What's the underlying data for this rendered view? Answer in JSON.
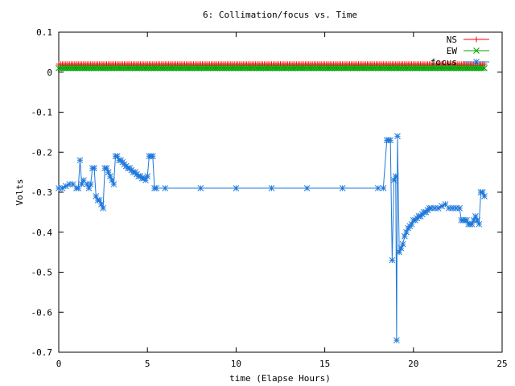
{
  "chart_data": {
    "type": "line",
    "title": "6: Collimation/focus vs. Time",
    "xlabel": "time (Elapse Hours)",
    "ylabel": "Volts",
    "xlim": [
      0,
      25
    ],
    "ylim": [
      -0.7,
      0.1
    ],
    "x_ticks": [
      0,
      5,
      10,
      15,
      20,
      25
    ],
    "x_tick_labels": [
      "0",
      "5",
      "10",
      "15",
      "20",
      "25"
    ],
    "y_ticks": [
      0.1,
      0,
      -0.1,
      -0.2,
      -0.3,
      -0.4,
      -0.5,
      -0.6,
      -0.7
    ],
    "y_tick_labels": [
      "0.1",
      "0",
      "-0.1",
      "-0.2",
      "-0.3",
      "-0.4",
      "-0.5",
      "-0.6",
      "-0.7"
    ],
    "grid": false,
    "legend_position": "top-right",
    "series": [
      {
        "name": "NS",
        "color": "#ff0000",
        "marker": "plus",
        "x_start": 0,
        "x_end": 24,
        "x_step": 0.1,
        "constant_value": 0.02
      },
      {
        "name": "EW",
        "color": "#00a000",
        "marker": "cross",
        "x_start": 0,
        "x_end": 24,
        "x_step": 0.1,
        "constant_value": 0.01
      },
      {
        "name": "focus",
        "color": "#1e78dc",
        "marker": "star",
        "points": [
          [
            0,
            -0.29
          ],
          [
            0.2,
            -0.29
          ],
          [
            0.4,
            -0.285
          ],
          [
            0.6,
            -0.28
          ],
          [
            0.8,
            -0.28
          ],
          [
            1.0,
            -0.29
          ],
          [
            1.1,
            -0.29
          ],
          [
            1.2,
            -0.22
          ],
          [
            1.3,
            -0.28
          ],
          [
            1.4,
            -0.27
          ],
          [
            1.6,
            -0.28
          ],
          [
            1.7,
            -0.29
          ],
          [
            1.8,
            -0.28
          ],
          [
            1.9,
            -0.24
          ],
          [
            2.0,
            -0.24
          ],
          [
            2.1,
            -0.31
          ],
          [
            2.2,
            -0.32
          ],
          [
            2.3,
            -0.32
          ],
          [
            2.4,
            -0.33
          ],
          [
            2.5,
            -0.34
          ],
          [
            2.6,
            -0.24
          ],
          [
            2.7,
            -0.24
          ],
          [
            2.8,
            -0.25
          ],
          [
            2.9,
            -0.26
          ],
          [
            3.0,
            -0.27
          ],
          [
            3.1,
            -0.28
          ],
          [
            3.2,
            -0.21
          ],
          [
            3.3,
            -0.21
          ],
          [
            3.4,
            -0.22
          ],
          [
            3.5,
            -0.22
          ],
          [
            3.6,
            -0.225
          ],
          [
            3.7,
            -0.23
          ],
          [
            3.8,
            -0.235
          ],
          [
            3.9,
            -0.24
          ],
          [
            4.0,
            -0.24
          ],
          [
            4.1,
            -0.245
          ],
          [
            4.2,
            -0.25
          ],
          [
            4.3,
            -0.25
          ],
          [
            4.4,
            -0.255
          ],
          [
            4.5,
            -0.26
          ],
          [
            4.6,
            -0.26
          ],
          [
            4.7,
            -0.265
          ],
          [
            4.8,
            -0.265
          ],
          [
            4.9,
            -0.27
          ],
          [
            5.0,
            -0.26
          ],
          [
            5.1,
            -0.21
          ],
          [
            5.2,
            -0.21
          ],
          [
            5.3,
            -0.21
          ],
          [
            5.4,
            -0.29
          ],
          [
            5.5,
            -0.29
          ],
          [
            6.0,
            -0.29
          ],
          [
            8.0,
            -0.29
          ],
          [
            10.0,
            -0.29
          ],
          [
            12.0,
            -0.29
          ],
          [
            14.0,
            -0.29
          ],
          [
            16.0,
            -0.29
          ],
          [
            18.0,
            -0.29
          ],
          [
            18.3,
            -0.29
          ],
          [
            18.5,
            -0.17
          ],
          [
            18.6,
            -0.17
          ],
          [
            18.7,
            -0.17
          ],
          [
            18.8,
            -0.47
          ],
          [
            18.9,
            -0.27
          ],
          [
            19.0,
            -0.26
          ],
          [
            19.05,
            -0.67
          ],
          [
            19.1,
            -0.16
          ],
          [
            19.2,
            -0.45
          ],
          [
            19.3,
            -0.44
          ],
          [
            19.4,
            -0.43
          ],
          [
            19.5,
            -0.41
          ],
          [
            19.6,
            -0.4
          ],
          [
            19.7,
            -0.39
          ],
          [
            19.8,
            -0.385
          ],
          [
            19.9,
            -0.38
          ],
          [
            20.0,
            -0.37
          ],
          [
            20.1,
            -0.37
          ],
          [
            20.2,
            -0.365
          ],
          [
            20.3,
            -0.36
          ],
          [
            20.4,
            -0.36
          ],
          [
            20.5,
            -0.355
          ],
          [
            20.6,
            -0.35
          ],
          [
            20.7,
            -0.35
          ],
          [
            20.8,
            -0.345
          ],
          [
            20.9,
            -0.34
          ],
          [
            21.0,
            -0.34
          ],
          [
            21.2,
            -0.34
          ],
          [
            21.4,
            -0.34
          ],
          [
            21.6,
            -0.335
          ],
          [
            21.8,
            -0.33
          ],
          [
            22.0,
            -0.34
          ],
          [
            22.2,
            -0.34
          ],
          [
            22.4,
            -0.34
          ],
          [
            22.6,
            -0.34
          ],
          [
            22.7,
            -0.37
          ],
          [
            22.8,
            -0.37
          ],
          [
            22.9,
            -0.37
          ],
          [
            23.0,
            -0.37
          ],
          [
            23.1,
            -0.38
          ],
          [
            23.2,
            -0.38
          ],
          [
            23.3,
            -0.38
          ],
          [
            23.4,
            -0.37
          ],
          [
            23.5,
            -0.36
          ],
          [
            23.6,
            -0.37
          ],
          [
            23.7,
            -0.38
          ],
          [
            23.8,
            -0.3
          ],
          [
            23.9,
            -0.3
          ],
          [
            24.0,
            -0.31
          ]
        ]
      }
    ]
  }
}
